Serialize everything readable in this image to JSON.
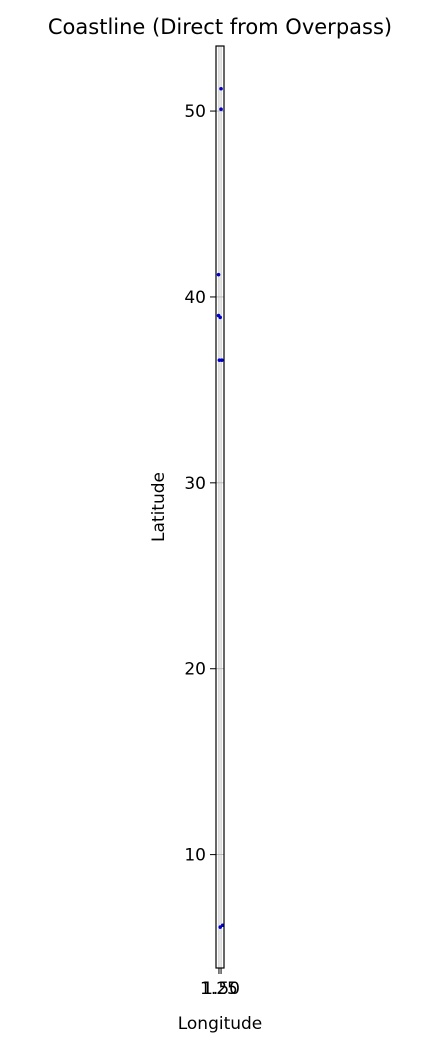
{
  "chart_data": {
    "type": "scatter",
    "title": "Coastline (Direct from Overpass)",
    "xlabel": "Longitude",
    "ylabel": "Latitude",
    "xlim": [
      0.9,
      1.85
    ],
    "ylim": [
      3.9,
      53.5
    ],
    "grid": true,
    "x_ticks": [
      {
        "value": 1.25,
        "label": "1.25"
      },
      {
        "value": 1.5,
        "label": "1.50"
      }
    ],
    "y_ticks": [
      {
        "value": 10,
        "label": "10"
      },
      {
        "value": 20,
        "label": "20"
      },
      {
        "value": 30,
        "label": "30"
      },
      {
        "value": 40,
        "label": "40"
      },
      {
        "value": 50,
        "label": "50"
      }
    ],
    "series": [
      {
        "color": "#0000cc",
        "points": [
          {
            "x": 1.5,
            "y": 51.2
          },
          {
            "x": 1.5,
            "y": 50.1
          },
          {
            "x": 1.2,
            "y": 41.2
          },
          {
            "x": 1.2,
            "y": 39.0
          },
          {
            "x": 1.4,
            "y": 38.9
          },
          {
            "x": 1.3,
            "y": 36.6
          },
          {
            "x": 1.6,
            "y": 36.6
          },
          {
            "x": 1.4,
            "y": 6.1
          },
          {
            "x": 1.7,
            "y": 6.2
          }
        ]
      }
    ]
  }
}
